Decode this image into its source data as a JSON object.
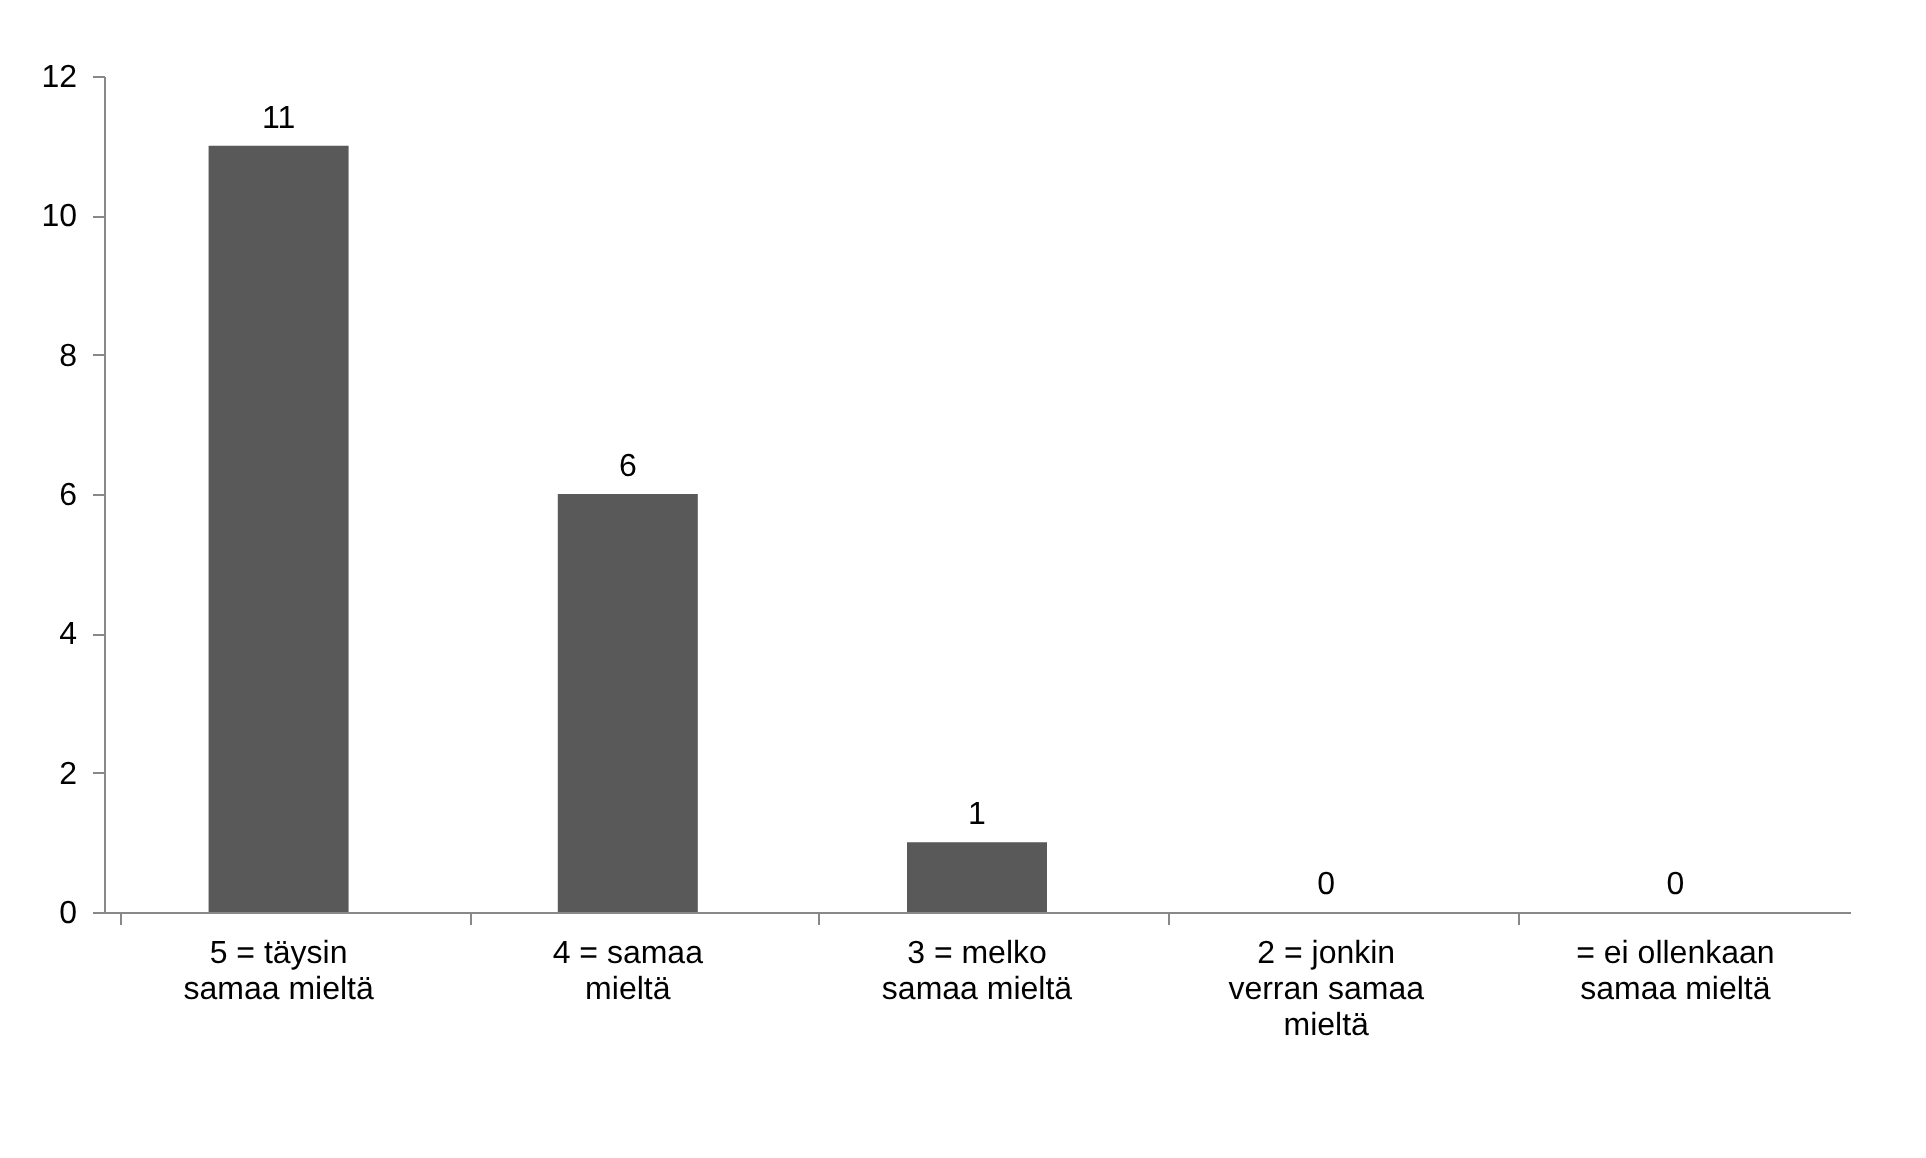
{
  "chart_data": {
    "type": "bar",
    "categories": [
      "5 = täysin samaa mieltä",
      "4 = samaa mieltä",
      "3 = melko samaa mieltä",
      "2 = jonkin verran samaa mieltä",
      "= ei ollenkaan samaa mieltä"
    ],
    "values": [
      11,
      6,
      1,
      0,
      0
    ],
    "color": "#595959",
    "ylim": [
      0,
      12
    ],
    "yticks": [
      0,
      2,
      4,
      6,
      8,
      10,
      12
    ],
    "grid": false,
    "data_labels": true
  }
}
